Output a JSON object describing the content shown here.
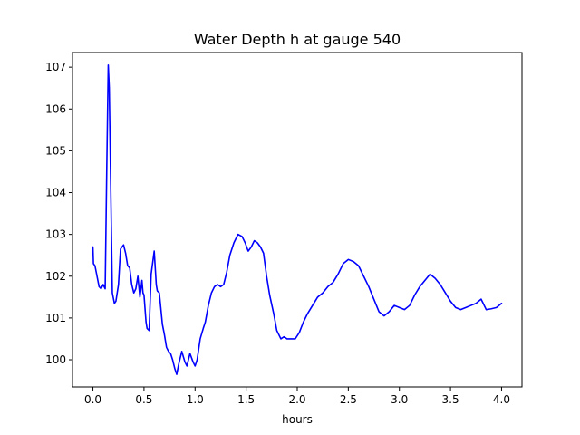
{
  "chart_data": {
    "type": "line",
    "title": "Water Depth h at gauge 540",
    "xlabel": "hours",
    "ylabel": "",
    "xlim": [
      -0.2,
      4.2
    ],
    "ylim": [
      99.35,
      107.35
    ],
    "grid": false,
    "xticks": [
      0.0,
      0.5,
      1.0,
      1.5,
      2.0,
      2.5,
      3.0,
      3.5,
      4.0
    ],
    "xtick_labels": [
      "0.0",
      "0.5",
      "1.0",
      "1.5",
      "2.0",
      "2.5",
      "3.0",
      "3.5",
      "4.0"
    ],
    "yticks": [
      100,
      101,
      102,
      103,
      104,
      105,
      106,
      107
    ],
    "ytick_labels": [
      "100",
      "101",
      "102",
      "103",
      "104",
      "105",
      "106",
      "107"
    ],
    "series": [
      {
        "color": "#0000ff",
        "x": [
          0.0,
          0.005,
          0.02,
          0.04,
          0.06,
          0.08,
          0.1,
          0.12,
          0.135,
          0.15,
          0.16,
          0.175,
          0.19,
          0.21,
          0.225,
          0.25,
          0.27,
          0.3,
          0.32,
          0.34,
          0.36,
          0.38,
          0.4,
          0.42,
          0.44,
          0.46,
          0.48,
          0.49,
          0.5,
          0.52,
          0.53,
          0.55,
          0.57,
          0.6,
          0.62,
          0.63,
          0.65,
          0.66,
          0.68,
          0.7,
          0.72,
          0.74,
          0.76,
          0.78,
          0.8,
          0.82,
          0.84,
          0.87,
          0.9,
          0.92,
          0.95,
          0.98,
          1.0,
          1.02,
          1.05,
          1.08,
          1.1,
          1.13,
          1.16,
          1.19,
          1.22,
          1.25,
          1.28,
          1.31,
          1.34,
          1.38,
          1.42,
          1.46,
          1.49,
          1.52,
          1.55,
          1.58,
          1.61,
          1.64,
          1.67,
          1.7,
          1.73,
          1.77,
          1.8,
          1.84,
          1.87,
          1.9,
          1.94,
          1.98,
          2.02,
          2.06,
          2.1,
          2.15,
          2.2,
          2.25,
          2.3,
          2.35,
          2.4,
          2.45,
          2.5,
          2.55,
          2.6,
          2.65,
          2.7,
          2.75,
          2.8,
          2.85,
          2.9,
          2.95,
          3.0,
          3.05,
          3.1,
          3.15,
          3.2,
          3.25,
          3.3,
          3.35,
          3.4,
          3.45,
          3.5,
          3.55,
          3.6,
          3.65,
          3.7,
          3.75,
          3.8,
          3.85,
          3.9,
          3.95,
          4.0
        ],
        "y": [
          102.7,
          102.3,
          102.25,
          102.0,
          101.75,
          101.7,
          101.8,
          101.7,
          104.5,
          107.05,
          106.5,
          104.0,
          101.6,
          101.35,
          101.4,
          101.8,
          102.65,
          102.75,
          102.55,
          102.25,
          102.2,
          101.8,
          101.6,
          101.7,
          102.0,
          101.5,
          101.9,
          101.6,
          101.55,
          100.9,
          100.75,
          100.7,
          102.05,
          102.6,
          101.8,
          101.65,
          101.6,
          101.35,
          100.85,
          100.6,
          100.3,
          100.2,
          100.15,
          100.0,
          99.8,
          99.65,
          99.9,
          100.2,
          99.95,
          99.85,
          100.15,
          99.95,
          99.85,
          100.0,
          100.5,
          100.75,
          100.9,
          101.3,
          101.6,
          101.75,
          101.8,
          101.75,
          101.8,
          102.1,
          102.5,
          102.8,
          103.0,
          102.95,
          102.8,
          102.6,
          102.7,
          102.85,
          102.8,
          102.7,
          102.55,
          102.0,
          101.55,
          101.1,
          100.7,
          100.5,
          100.55,
          100.5,
          100.5,
          100.5,
          100.65,
          100.9,
          101.1,
          101.3,
          101.5,
          101.6,
          101.75,
          101.85,
          102.05,
          102.3,
          102.4,
          102.35,
          102.25,
          102.0,
          101.75,
          101.45,
          101.15,
          101.05,
          101.15,
          101.3,
          101.25,
          101.2,
          101.3,
          101.55,
          101.75,
          101.9,
          102.05,
          101.95,
          101.8,
          101.6,
          101.4,
          101.25,
          101.2,
          101.25,
          101.3,
          101.35,
          101.45,
          101.2,
          101.22,
          101.25,
          101.35
        ]
      }
    ]
  }
}
